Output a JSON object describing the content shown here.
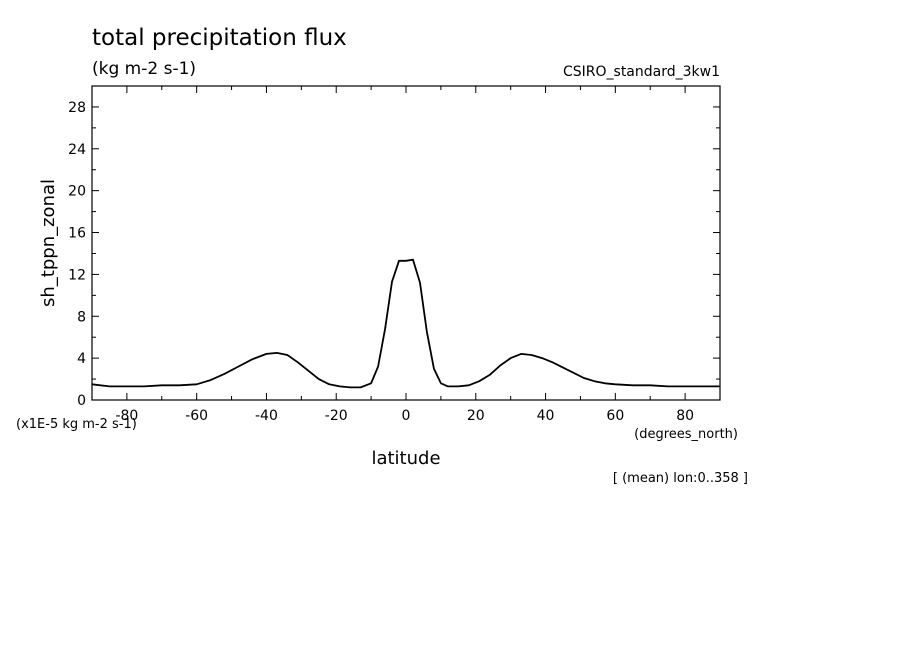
{
  "chart_data": {
    "type": "line",
    "title": "total precipitation flux",
    "units": "(kg m-2 s-1)",
    "model_label": "CSIRO_standard_3kw1",
    "xlabel": "latitude",
    "xunits": "(degrees_north)",
    "ylabel": "sh_tppn_zonal",
    "yscale_note": "(x1E-5 kg m-2 s-1)",
    "footnote": "[ (mean) lon:0..358 ]",
    "xlim": [
      -90,
      90
    ],
    "ylim": [
      0,
      30
    ],
    "xticks": [
      -80,
      -60,
      -40,
      -20,
      0,
      20,
      40,
      60,
      80
    ],
    "xtick_labels": [
      "-80",
      "-60",
      "-40",
      "-20",
      "0",
      "20",
      "40",
      "60",
      "80"
    ],
    "yticks": [
      0,
      4,
      8,
      12,
      16,
      20,
      24,
      28
    ],
    "ytick_labels": [
      "0",
      "4",
      "8",
      "12",
      "16",
      "20",
      "24",
      "28"
    ],
    "grid": false,
    "series": [
      {
        "x": [
          -90,
          -85,
          -80,
          -75,
          -70,
          -65,
          -60,
          -56,
          -52,
          -48,
          -44,
          -40,
          -37,
          -34,
          -31,
          -28,
          -25,
          -22,
          -19,
          -16,
          -13,
          -10,
          -8,
          -6,
          -4,
          -2,
          0,
          2,
          4,
          6,
          8,
          10,
          12,
          15,
          18,
          21,
          24,
          27,
          30,
          33,
          36,
          39,
          42,
          45,
          48,
          51,
          54,
          57,
          60,
          65,
          70,
          75,
          80,
          85,
          90
        ],
        "y": [
          1.5,
          1.3,
          1.3,
          1.3,
          1.4,
          1.4,
          1.5,
          1.9,
          2.5,
          3.2,
          3.9,
          4.4,
          4.5,
          4.3,
          3.6,
          2.8,
          2.0,
          1.5,
          1.3,
          1.2,
          1.2,
          1.6,
          3.2,
          6.8,
          11.3,
          13.3,
          13.3,
          13.4,
          11.2,
          6.5,
          3.0,
          1.6,
          1.3,
          1.3,
          1.4,
          1.8,
          2.4,
          3.3,
          4.0,
          4.4,
          4.3,
          4.0,
          3.6,
          3.1,
          2.6,
          2.1,
          1.8,
          1.6,
          1.5,
          1.4,
          1.4,
          1.3,
          1.3,
          1.3,
          1.3
        ]
      }
    ]
  }
}
